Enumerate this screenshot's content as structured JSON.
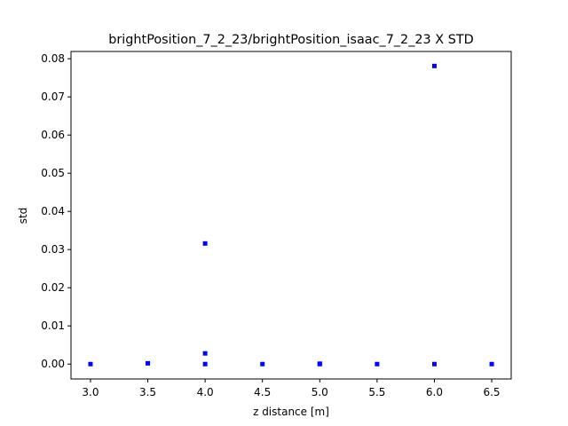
{
  "chart_data": {
    "type": "scatter",
    "title": "brightPosition_7_2_23/brightPosition_isaac_7_2_23 X STD",
    "xlabel": "z distance [m]",
    "ylabel": "std",
    "xlim": [
      2.83,
      6.67
    ],
    "ylim": [
      -0.0039,
      0.0819
    ],
    "xticks": [
      3.0,
      3.5,
      4.0,
      4.5,
      5.0,
      5.5,
      6.0,
      6.5
    ],
    "xtick_labels": [
      "3.0",
      "3.5",
      "4.0",
      "4.5",
      "5.0",
      "5.5",
      "6.0",
      "6.5"
    ],
    "yticks": [
      0.0,
      0.01,
      0.02,
      0.03,
      0.04,
      0.05,
      0.06,
      0.07,
      0.08
    ],
    "ytick_labels": [
      "0.00",
      "0.01",
      "0.02",
      "0.03",
      "0.04",
      "0.05",
      "0.06",
      "0.07",
      "0.08"
    ],
    "grid": false,
    "marker_color": "#0000ff",
    "marker": "square",
    "series": [
      {
        "points": [
          {
            "x": 3.0,
            "y": 0.0
          },
          {
            "x": 3.5,
            "y": 0.0002
          },
          {
            "x": 4.0,
            "y": 0.0316
          },
          {
            "x": 4.0,
            "y": 0.0028
          },
          {
            "x": 4.0,
            "y": 0.0
          },
          {
            "x": 4.5,
            "y": 0.0
          },
          {
            "x": 5.0,
            "y": 0.0001
          },
          {
            "x": 5.0,
            "y": 0.0
          },
          {
            "x": 5.5,
            "y": 0.0
          },
          {
            "x": 6.0,
            "y": 0.0781
          },
          {
            "x": 6.0,
            "y": 0.0
          },
          {
            "x": 6.5,
            "y": 0.0
          }
        ]
      }
    ]
  }
}
